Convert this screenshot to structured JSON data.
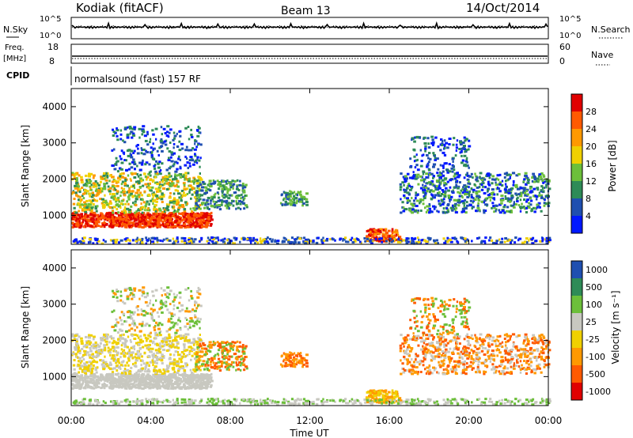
{
  "header": {
    "station": "Kodiak (fitACF)",
    "beam": "Beam 13",
    "date": "14/Oct/2014"
  },
  "noise_panel": {
    "left_label": "N.Sky",
    "right_label": "N.Search",
    "left_ticks": [
      "10^5",
      "10^0"
    ],
    "right_ticks": [
      "10^5",
      "10^0"
    ]
  },
  "freq_panel": {
    "left_label_1": "Freq.",
    "left_label_2": "[MHz]",
    "right_label": "Nave",
    "left_ticks": [
      "18",
      "8"
    ],
    "right_ticks": [
      "60",
      "0"
    ]
  },
  "cpid_panel": {
    "label": "CPID",
    "text": "normalsound (fast) 157 RF"
  },
  "colors": {
    "power": [
      "#0018ff",
      "#1f4fb0",
      "#2e8b57",
      "#6cbf3a",
      "#f0d000",
      "#ff9900",
      "#ff5a00",
      "#e00000"
    ],
    "velocity": [
      "#e00000",
      "#ff5a00",
      "#ff9900",
      "#f0d000",
      "#c8c8c0",
      "#6cbf3a",
      "#2e8b57",
      "#1f4fb0"
    ]
  },
  "chart_data": [
    {
      "type": "heatmap",
      "title": "Power [dB]",
      "ylabel": "Slant Range [km]",
      "xlabel": "Time UT",
      "x_ticks": [
        "00:00",
        "04:00",
        "08:00",
        "12:00",
        "16:00",
        "20:00",
        "00:00"
      ],
      "y_ticks": [
        1000,
        2000,
        3000,
        4000
      ],
      "ylim": [
        200,
        4500
      ],
      "xlim_hours": [
        0,
        24
      ],
      "colorbar_label": "Power [dB]",
      "colorbar_ticks": [
        "28",
        "24",
        "20",
        "16",
        "12",
        "8",
        "4"
      ]
    },
    {
      "type": "heatmap",
      "title": "Velocity [m s⁻¹]",
      "ylabel": "Slant Range [km]",
      "xlabel": "Time UT",
      "x_ticks": [
        "00:00",
        "04:00",
        "08:00",
        "12:00",
        "16:00",
        "20:00",
        "00:00"
      ],
      "y_ticks": [
        1000,
        2000,
        3000,
        4000
      ],
      "ylim": [
        200,
        4500
      ],
      "xlim_hours": [
        0,
        24
      ],
      "colorbar_label": "Velocity [m s⁻¹]",
      "colorbar_ticks": [
        "1000",
        "500",
        "100",
        "25",
        "-25",
        "-100",
        "-500",
        "-1000"
      ]
    }
  ]
}
